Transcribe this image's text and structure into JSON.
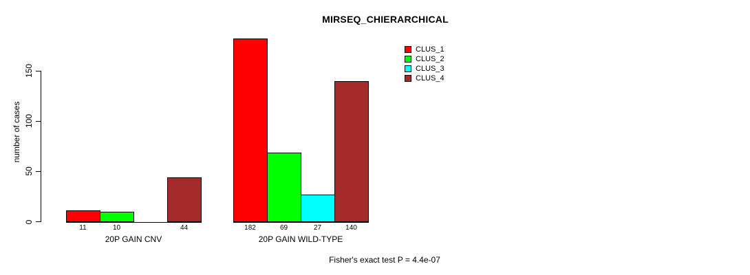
{
  "chart_data": {
    "type": "bar",
    "title": "MIRSEQ_CHIERARCHICAL",
    "ylabel": "number of cases",
    "yticks": [
      0,
      50,
      100,
      150
    ],
    "ylim": [
      0,
      190
    ],
    "grid": false,
    "legend_position": "top-right",
    "categories": [
      "20P GAIN CNV",
      "20P GAIN WILD-TYPE"
    ],
    "legend": [
      "CLUS_1",
      "CLUS_2",
      "CLUS_3",
      "CLUS_4"
    ],
    "colors": [
      "#ff0000",
      "#00ff00",
      "#00ffff",
      "#a52a2a"
    ],
    "series": [
      {
        "name": "CLUS_1",
        "values": [
          11,
          182
        ]
      },
      {
        "name": "CLUS_2",
        "values": [
          10,
          69
        ]
      },
      {
        "name": "CLUS_3",
        "values": [
          0,
          27
        ]
      },
      {
        "name": "CLUS_4",
        "values": [
          44,
          140
        ]
      }
    ],
    "bar_labels": [
      [
        "11",
        "10",
        "",
        "44"
      ],
      [
        "182",
        "69",
        "27",
        "140"
      ]
    ],
    "annotation": "Fisher's exact test P = 4.4e-07"
  }
}
